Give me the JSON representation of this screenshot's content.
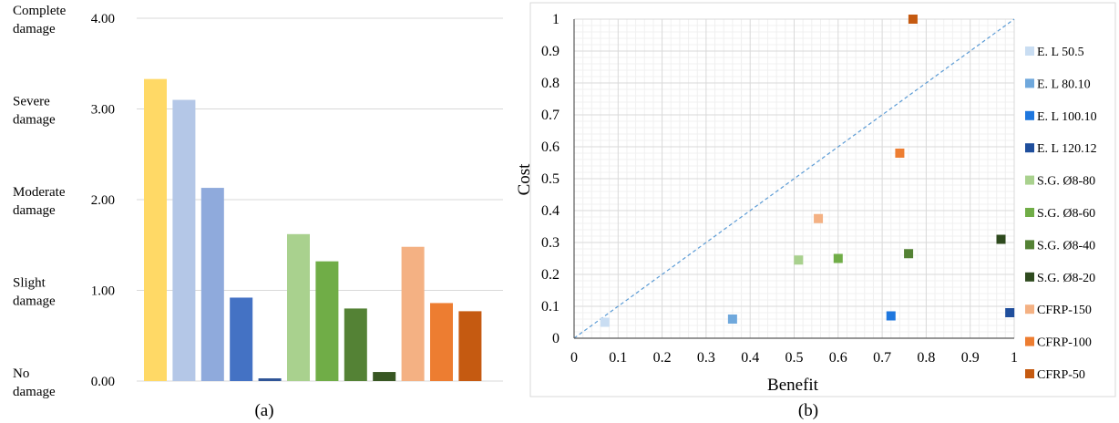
{
  "chart_data": [
    {
      "type": "bar",
      "panel_label": "(a)",
      "ylim": [
        0,
        4
      ],
      "y_ticks": [
        "0.00",
        "1.00",
        "2.00",
        "3.00",
        "4.00"
      ],
      "damage_levels": [
        {
          "line1": "No",
          "line2": "damage",
          "y": 0
        },
        {
          "line1": "Slight",
          "line2": "damage",
          "y": 1
        },
        {
          "line1": "Moderate",
          "line2": "damage",
          "y": 2
        },
        {
          "line1": "Severe",
          "line2": "damage",
          "y": 3
        },
        {
          "line1": "Complete",
          "line2": "damage",
          "y": 4
        }
      ],
      "grid": true,
      "bars": [
        {
          "value": 3.33,
          "color": "#FFD966"
        },
        {
          "value": 3.1,
          "color": "#B4C7E7"
        },
        {
          "value": 2.13,
          "color": "#8FAADC"
        },
        {
          "value": 0.92,
          "color": "#4472C4"
        },
        {
          "value": 0.03,
          "color": "#2F5597"
        },
        {
          "value": 1.62,
          "color": "#A9D18E"
        },
        {
          "value": 1.32,
          "color": "#70AD47"
        },
        {
          "value": 0.8,
          "color": "#548235"
        },
        {
          "value": 0.1,
          "color": "#385723"
        },
        {
          "value": 1.48,
          "color": "#F4B183"
        },
        {
          "value": 0.86,
          "color": "#ED7D31"
        },
        {
          "value": 0.77,
          "color": "#C55A11"
        }
      ]
    },
    {
      "type": "scatter",
      "panel_label": "(b)",
      "xlabel": "Benefit",
      "ylabel": "Cost",
      "xlim": [
        0,
        1
      ],
      "ylim": [
        0,
        1
      ],
      "x_ticks": [
        "0",
        "0.1",
        "0.2",
        "0.3",
        "0.4",
        "0.5",
        "0.6",
        "0.7",
        "0.8",
        "0.9",
        "1"
      ],
      "y_ticks": [
        "0",
        "0.1",
        "0.2",
        "0.3",
        "0.4",
        "0.5",
        "0.6",
        "0.7",
        "0.8",
        "0.9",
        "1"
      ],
      "grid": true,
      "reference_line": {
        "from": [
          0,
          0
        ],
        "to": [
          1,
          1
        ],
        "color": "#5B9BD5",
        "style": "dashed"
      },
      "legend_position": "right",
      "series": [
        {
          "name": "E. L 50.5",
          "x": 0.07,
          "y": 0.05,
          "color": "#C9DDF2"
        },
        {
          "name": "E. L 80.10",
          "x": 0.36,
          "y": 0.06,
          "color": "#6FA8DC"
        },
        {
          "name": "E. L 100.10",
          "x": 0.72,
          "y": 0.07,
          "color": "#1F77DE"
        },
        {
          "name": "E. L 120.12",
          "x": 0.99,
          "y": 0.08,
          "color": "#1F4E9C"
        },
        {
          "name": "S.G. Ø8-80",
          "x": 0.51,
          "y": 0.245,
          "color": "#A9D18E"
        },
        {
          "name": "S.G. Ø8-60",
          "x": 0.6,
          "y": 0.25,
          "color": "#70AD47"
        },
        {
          "name": "S.G. Ø8-40",
          "x": 0.76,
          "y": 0.265,
          "color": "#548235"
        },
        {
          "name": "S.G. Ø8-20",
          "x": 0.97,
          "y": 0.31,
          "color": "#2E4A1E"
        },
        {
          "name": "CFRP-150",
          "x": 0.555,
          "y": 0.375,
          "color": "#F4B183"
        },
        {
          "name": "CFRP-100",
          "x": 0.74,
          "y": 0.58,
          "color": "#ED7D31"
        },
        {
          "name": "CFRP-50",
          "x": 0.77,
          "y": 1.0,
          "color": "#C55A11"
        }
      ]
    }
  ]
}
